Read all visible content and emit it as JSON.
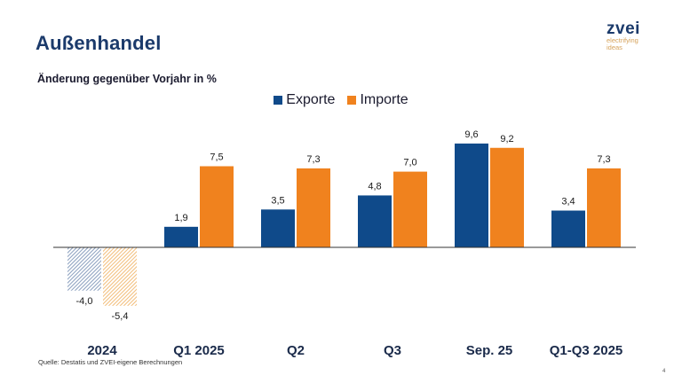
{
  "slide": {
    "title": "Außenhandel",
    "subtitle": "Änderung gegenüber Vorjahr in %",
    "logo": {
      "word": "zvei",
      "tagline_1": "electrifying",
      "tagline_2": "ideas"
    },
    "source": "Quelle: Destatis und ZVEI-eigene Berechnungen",
    "page_number": "4"
  },
  "colors": {
    "exporte": "#0f4a8a",
    "importe": "#f0821e",
    "exporte_hatched": "#8a9fbe",
    "importe_hatched": "#f2bd7a",
    "axis": "#333333",
    "title": "#1b3a6b"
  },
  "chart_data": {
    "type": "bar",
    "title": "Außenhandel",
    "subtitle": "Änderung gegenüber Vorjahr in %",
    "xlabel": "",
    "ylabel": "",
    "ylim": [
      -6,
      10
    ],
    "grid": false,
    "legend": {
      "placement": "top-center",
      "entries": [
        "Exporte",
        "Importe"
      ]
    },
    "categories": [
      "2024",
      "Q1 2025",
      "Q2",
      "Q3",
      "Sep. 25",
      "Q1-Q3 2025"
    ],
    "series": [
      {
        "name": "Exporte",
        "values": [
          -4.0,
          1.9,
          3.5,
          4.8,
          9.6,
          3.4
        ],
        "labels": [
          "-4,0",
          "1,9",
          "3,5",
          "4,8",
          "9,6",
          "3,4"
        ],
        "hatched": [
          true,
          false,
          false,
          false,
          false,
          false
        ]
      },
      {
        "name": "Importe",
        "values": [
          -5.4,
          7.5,
          7.3,
          7.0,
          9.2,
          7.3
        ],
        "labels": [
          "-5,4",
          "7,5",
          "7,3",
          "7,0",
          "9,2",
          "7,3"
        ],
        "hatched": [
          true,
          false,
          false,
          false,
          false,
          false
        ]
      }
    ]
  }
}
